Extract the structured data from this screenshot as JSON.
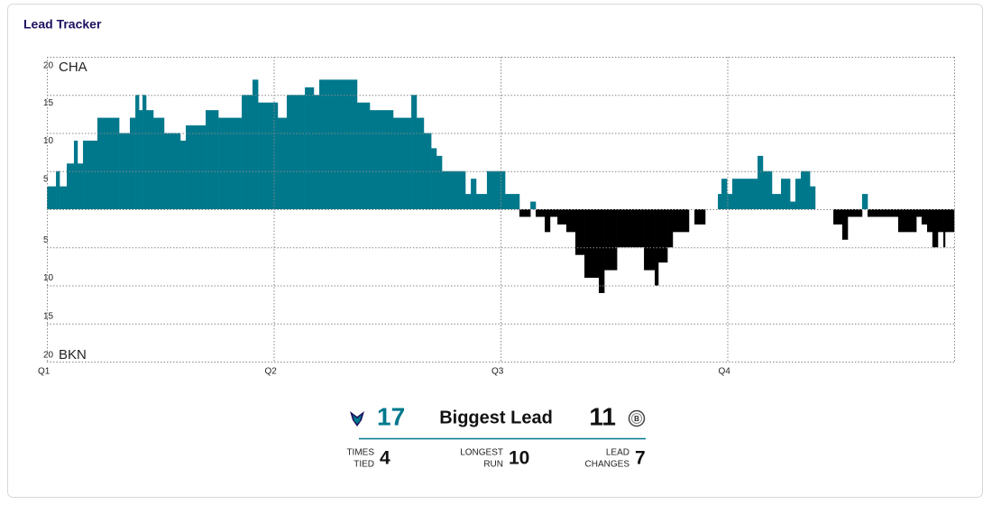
{
  "title": "Lead Tracker",
  "chart_data": {
    "type": "step",
    "team_labels": {
      "top": "CHA",
      "bottom": "BKN"
    },
    "positive_color": "#00788c",
    "negative_color": "#000000",
    "xlim": [
      0,
      48
    ],
    "xticks": [
      {
        "value": 0,
        "label": "Q1"
      },
      {
        "value": 12,
        "label": "Q2"
      },
      {
        "value": 24,
        "label": "Q3"
      },
      {
        "value": 36,
        "label": "Q4"
      }
    ],
    "ylim": [
      -20,
      20
    ],
    "yticks": [
      {
        "value": 20,
        "label": "20"
      },
      {
        "value": 15,
        "label": "15"
      },
      {
        "value": 10,
        "label": "10"
      },
      {
        "value": 5,
        "label": "5"
      },
      {
        "value": 0,
        "label": null
      },
      {
        "value": -5,
        "label": "5"
      },
      {
        "value": -10,
        "label": "10"
      },
      {
        "value": -15,
        "label": "15"
      },
      {
        "value": -20,
        "label": "20"
      }
    ],
    "grid": true,
    "x": [
      0,
      0.48,
      0.67,
      1.05,
      1.43,
      1.62,
      1.91,
      2.67,
      3.82,
      4.39,
      4.68,
      4.87,
      5.06,
      5.25,
      5.63,
      6.2,
      7.06,
      7.35,
      8.4,
      9.07,
      10.31,
      10.88,
      11.17,
      12.21,
      12.69,
      13.65,
      14.12,
      14.41,
      16.41,
      17.08,
      18.32,
      19.28,
      19.56,
      19.94,
      20.33,
      20.61,
      20.9,
      22.14,
      22.43,
      22.71,
      23.28,
      24.24,
      25.0,
      25.58,
      25.86,
      26.34,
      26.62,
      27.01,
      27.48,
      27.96,
      28.44,
      29.2,
      29.49,
      30.16,
      31.59,
      32.16,
      32.35,
      32.83,
      33.11,
      33.97,
      34.26,
      34.83,
      35.5,
      35.69,
      35.98,
      36.26,
      37.6,
      37.88,
      38.36,
      38.84,
      39.32,
      39.6,
      39.89,
      40.37,
      40.65,
      41.61,
      42.08,
      42.37,
      43.13,
      43.42,
      45.04,
      46.0,
      46.28,
      46.57,
      46.85,
      47.14,
      47.43,
      47.52
    ],
    "values": [
      3,
      5,
      3,
      6,
      9,
      6,
      9,
      12,
      10,
      12,
      15,
      13,
      15,
      13,
      12,
      10,
      9,
      11,
      13,
      12,
      15,
      17,
      14,
      12,
      15,
      16,
      15,
      17,
      14,
      13,
      12,
      15,
      12,
      10,
      8,
      7,
      5,
      2,
      4,
      2,
      5,
      2,
      -1,
      1,
      -1,
      -3,
      -1,
      -2,
      -3,
      -6,
      -9,
      -11,
      -8,
      -5,
      -8,
      -10,
      -7,
      -5,
      -3,
      0,
      -2,
      0,
      2,
      4,
      2,
      4,
      7,
      5,
      2,
      4,
      1,
      4,
      5,
      3,
      0,
      -2,
      -4,
      -1,
      2,
      -1,
      -3,
      -1,
      -2,
      -3,
      -5,
      -3,
      -5,
      -3
    ]
  },
  "summary": {
    "home_lead": "17",
    "heading": "Biggest Lead",
    "away_lead": "11",
    "stats": [
      {
        "label": [
          "TIMES",
          "TIED"
        ],
        "value": "4"
      },
      {
        "label": [
          "LONGEST",
          "RUN"
        ],
        "value": "10"
      },
      {
        "label": [
          "LEAD",
          "CHANGES"
        ],
        "value": "7"
      }
    ]
  }
}
